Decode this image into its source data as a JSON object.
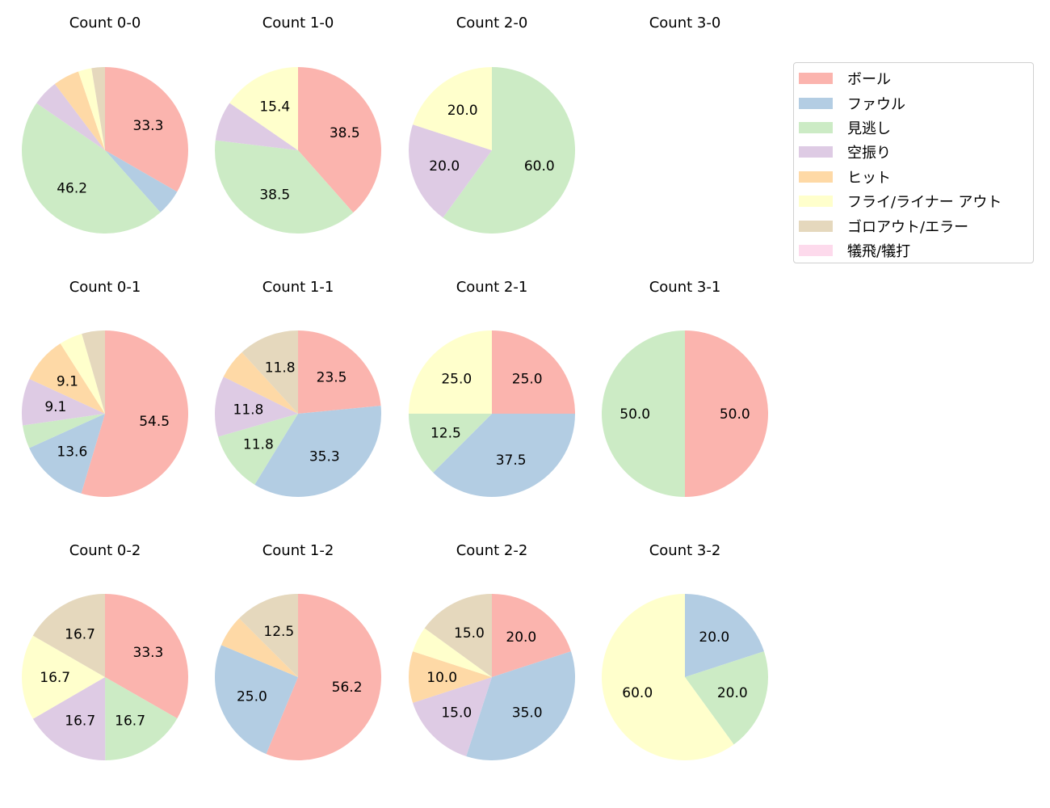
{
  "chart_data": {
    "type": "pie",
    "categories": [
      "ボール",
      "ファウル",
      "見逃し",
      "空振り",
      "ヒット",
      "フライ/ライナー アウト",
      "ゴロアウト/エラー",
      "犠飛/犠打"
    ],
    "colors": [
      "#fbb4ae",
      "#b3cde3",
      "#ccebc5",
      "#decbe4",
      "#fed9a6",
      "#ffffcc",
      "#e5d8bd",
      "#fddaec"
    ],
    "legend_position": "right",
    "label_min_percent": 8,
    "charts": [
      {
        "title": "Count 0-0",
        "values": [
          33.3,
          5.1,
          46.2,
          5.1,
          5.1,
          2.6,
          2.6,
          0
        ]
      },
      {
        "title": "Count 1-0",
        "values": [
          38.5,
          0,
          38.5,
          7.7,
          0,
          15.4,
          0,
          0
        ]
      },
      {
        "title": "Count 2-0",
        "values": [
          0,
          0,
          60.0,
          20.0,
          0,
          20.0,
          0,
          0
        ]
      },
      {
        "title": "Count 3-0",
        "values": [
          0,
          0,
          0,
          0,
          0,
          0,
          0,
          0
        ]
      },
      {
        "title": "Count 0-1",
        "values": [
          54.5,
          13.6,
          4.5,
          9.1,
          9.1,
          4.5,
          4.5,
          0
        ]
      },
      {
        "title": "Count 1-1",
        "values": [
          23.5,
          35.3,
          11.8,
          11.8,
          5.9,
          0,
          11.8,
          0
        ]
      },
      {
        "title": "Count 2-1",
        "values": [
          25.0,
          37.5,
          12.5,
          0,
          0,
          25.0,
          0,
          0
        ]
      },
      {
        "title": "Count 3-1",
        "values": [
          50.0,
          0,
          50.0,
          0,
          0,
          0,
          0,
          0
        ]
      },
      {
        "title": "Count 0-2",
        "values": [
          33.3,
          0,
          16.7,
          16.7,
          0,
          16.7,
          16.7,
          0
        ]
      },
      {
        "title": "Count 1-2",
        "values": [
          56.2,
          25.0,
          0,
          0,
          6.2,
          0,
          12.5,
          0
        ]
      },
      {
        "title": "Count 2-2",
        "values": [
          20.0,
          35.0,
          0,
          15.0,
          10.0,
          5.0,
          15.0,
          0
        ]
      },
      {
        "title": "Count 3-2",
        "values": [
          0,
          20.0,
          20.0,
          0,
          0,
          60.0,
          0,
          0
        ]
      }
    ]
  }
}
